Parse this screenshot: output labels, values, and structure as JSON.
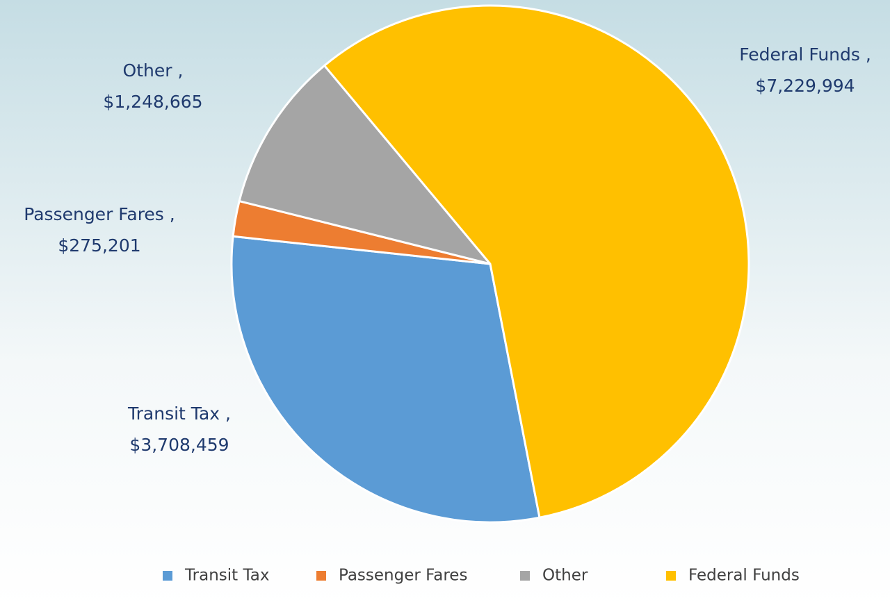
{
  "chart_data": {
    "type": "pie",
    "categories": [
      "Transit Tax",
      "Passenger Fares",
      "Other",
      "Federal Funds"
    ],
    "values": [
      3708459,
      275201,
      1248665,
      7229994
    ],
    "value_labels": [
      "$3,708,459",
      "$275,201",
      "$1,248,665",
      "$7,229,994"
    ],
    "data_labels": [
      "Transit Tax ,",
      "Passenger Fares ,",
      "Other ,",
      "Federal Funds ,"
    ],
    "colors": [
      "#5b9bd5",
      "#ed7d31",
      "#a5a5a5",
      "#ffc000"
    ],
    "legend": "bottom"
  }
}
